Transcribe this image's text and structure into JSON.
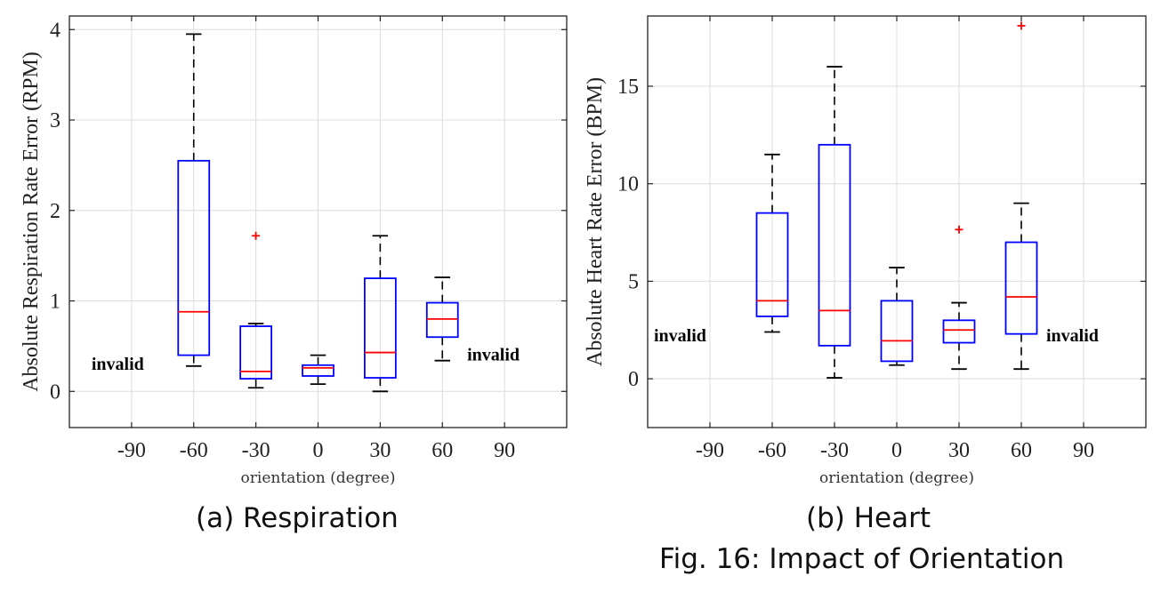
{
  "chart_data": [
    {
      "type": "box",
      "caption": "(a) Respiration",
      "xlabel": "orientation (degree)",
      "ylabel": "Absolute Respiration Rate Error (RPM)",
      "categories": [
        "-90",
        "-60",
        "-30",
        "0",
        "30",
        "60",
        "90"
      ],
      "ylim": [
        -0.4,
        4.15
      ],
      "yticks": [
        0,
        1,
        2,
        3,
        4
      ],
      "grid": true,
      "invalid_label": "invalid",
      "invalid_categories": [
        "-90",
        "90"
      ],
      "boxes": [
        {
          "category": "-60",
          "whisker_low": 0.28,
          "q1": 0.4,
          "median": 0.88,
          "q3": 2.55,
          "whisker_high": 3.95,
          "outliers": []
        },
        {
          "category": "-30",
          "whisker_low": 0.04,
          "q1": 0.14,
          "median": 0.22,
          "q3": 0.72,
          "whisker_high": 0.75,
          "outliers": [
            1.72
          ]
        },
        {
          "category": "0",
          "whisker_low": 0.08,
          "q1": 0.17,
          "median": 0.26,
          "q3": 0.29,
          "whisker_high": 0.4,
          "outliers": []
        },
        {
          "category": "30",
          "whisker_low": 0.0,
          "q1": 0.15,
          "median": 0.43,
          "q3": 1.25,
          "whisker_high": 1.72,
          "outliers": []
        },
        {
          "category": "60",
          "whisker_low": 0.34,
          "q1": 0.6,
          "median": 0.8,
          "q3": 0.98,
          "whisker_high": 1.26,
          "outliers": []
        }
      ]
    },
    {
      "type": "box",
      "caption": "(b) Heart",
      "xlabel": "orientation (degree)",
      "ylabel": "Absolute Heart Rate Error (BPM)",
      "categories": [
        "-90",
        "-60",
        "-30",
        "0",
        "30",
        "60",
        "90"
      ],
      "ylim": [
        -2.5,
        18.6
      ],
      "yticks": [
        0,
        5,
        10,
        15
      ],
      "grid": true,
      "invalid_label": "invalid",
      "invalid_categories": [
        "-90",
        "90"
      ],
      "boxes": [
        {
          "category": "-60",
          "whisker_low": 2.4,
          "q1": 3.2,
          "median": 4.0,
          "q3": 8.5,
          "whisker_high": 11.5,
          "outliers": []
        },
        {
          "category": "-30",
          "whisker_low": 0.05,
          "q1": 1.7,
          "median": 3.5,
          "q3": 12.0,
          "whisker_high": 16.0,
          "outliers": []
        },
        {
          "category": "0",
          "whisker_low": 0.7,
          "q1": 0.9,
          "median": 1.95,
          "q3": 4.0,
          "whisker_high": 5.7,
          "outliers": []
        },
        {
          "category": "30",
          "whisker_low": 0.5,
          "q1": 1.85,
          "median": 2.5,
          "q3": 3.0,
          "whisker_high": 3.9,
          "outliers": [
            7.65
          ]
        },
        {
          "category": "60",
          "whisker_low": 0.5,
          "q1": 2.3,
          "median": 4.2,
          "q3": 7.0,
          "whisker_high": 9.0,
          "outliers": [
            18.1
          ]
        }
      ]
    }
  ],
  "figure_caption": "Fig. 16: Impact of Orientation",
  "colors": {
    "box": "#0000ff",
    "median": "#ff0000",
    "whisker": "#000000",
    "outlier": "#ff0000",
    "grid": "#dcdcdc"
  }
}
